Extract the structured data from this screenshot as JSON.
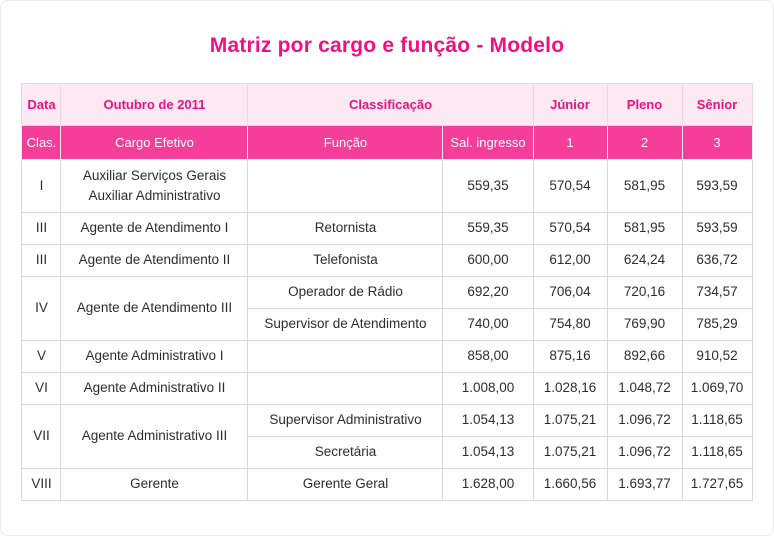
{
  "title": "Matriz por cargo e função - Modelo",
  "colors": {
    "accent_pink": "#ee1280",
    "header_light_pink_bg": "#fce9f1",
    "band_magenta_bg": "#f43e99",
    "band_text": "#ffffff",
    "data_text": "#2d2d2d",
    "grid_border": "#d8d8d8"
  },
  "header_row1": {
    "data": "Data",
    "outubro": "Outubro de 2011",
    "classificacao": "Classificação",
    "junior": "Júnior",
    "pleno": "Pleno",
    "senior": "Sênior"
  },
  "header_row2": {
    "clas": "Clas.",
    "cargo": "Cargo Efetivo",
    "funcao": "Função",
    "sal_ingresso": "Sal. ingresso",
    "n1": "1",
    "n2": "2",
    "n3": "3"
  },
  "rows": [
    {
      "clas": "I",
      "cargo_line1": "Auxiliar Serviços Gerais",
      "cargo_line2": "Auxiliar Administrativo",
      "funcao": "",
      "v": [
        "559,35",
        "570,54",
        "581,95",
        "593,59"
      ]
    },
    {
      "clas": "III",
      "cargo": "Agente de Atendimento I",
      "funcao": "Retornista",
      "v": [
        "559,35",
        "570,54",
        "581,95",
        "593,59"
      ]
    },
    {
      "clas": "III",
      "cargo": "Agente de Atendimento II",
      "funcao": "Telefonista",
      "v": [
        "600,00",
        "612,00",
        "624,24",
        "636,72"
      ]
    },
    {
      "clas": "IV",
      "cargo": "Agente de Atendimento III",
      "funcao": "Operador de Rádio",
      "v": [
        "692,20",
        "706,04",
        "720,16",
        "734,57"
      ]
    },
    {
      "funcao": "Supervisor de Atendimento",
      "v": [
        "740,00",
        "754,80",
        "769,90",
        "785,29"
      ]
    },
    {
      "clas": "V",
      "cargo": "Agente Administrativo I",
      "funcao": "",
      "v": [
        "858,00",
        "875,16",
        "892,66",
        "910,52"
      ]
    },
    {
      "clas": "VI",
      "cargo": "Agente Administrativo II",
      "funcao": "",
      "v": [
        "1.008,00",
        "1.028,16",
        "1.048,72",
        "1.069,70"
      ]
    },
    {
      "clas": "VII",
      "cargo": "Agente Administrativo III",
      "funcao": "Supervisor Administrativo",
      "v": [
        "1.054,13",
        "1.075,21",
        "1.096,72",
        "1.118,65"
      ]
    },
    {
      "funcao": "Secretária",
      "v": [
        "1.054,13",
        "1.075,21",
        "1.096,72",
        "1.118,65"
      ]
    },
    {
      "clas": "VIII",
      "cargo": "Gerente",
      "funcao": "Gerente Geral",
      "v": [
        "1.628,00",
        "1.660,56",
        "1.693,77",
        "1.727,65"
      ]
    }
  ]
}
